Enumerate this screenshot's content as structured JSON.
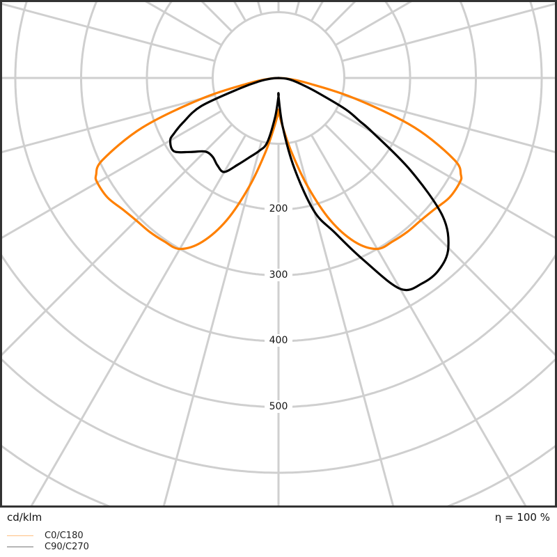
{
  "chart_data": {
    "type": "polar-line",
    "unit_label": "cd/klm",
    "efficiency_label": "η = 100 %",
    "radial_ticks": [
      200,
      300,
      400,
      500
    ],
    "angle_grid_step_deg": 15,
    "grid": true,
    "legend_position": "bottom-left",
    "series": [
      {
        "name": "C0/C180",
        "color": "#ff8000",
        "legend_color": "#ffbf80",
        "angles_deg": [
          0,
          5,
          10,
          15,
          20,
          25,
          30,
          35,
          40,
          45,
          50,
          55,
          60,
          62,
          65,
          70,
          75,
          80,
          85,
          90
        ],
        "right_values": [
          51,
          75,
          115,
          170,
          230,
          275,
          300,
          303,
          305,
          306,
          310,
          317,
          318,
          314,
          295,
          220,
          120,
          45,
          15,
          0
        ],
        "left_values": [
          51,
          75,
          115,
          170,
          230,
          275,
          300,
          303,
          305,
          306,
          310,
          317,
          318,
          314,
          295,
          220,
          120,
          45,
          15,
          0
        ]
      },
      {
        "name": "C90/C270",
        "color": "#000000",
        "legend_color": "#777777",
        "angles_deg": [
          0,
          5,
          10,
          15,
          20,
          25,
          30,
          35,
          40,
          45,
          50,
          55,
          60,
          62,
          65,
          70,
          75,
          80,
          85,
          90
        ],
        "right_values": [
          28,
          75,
          140,
          210,
          250,
          305,
          370,
          381,
          380,
          365,
          325,
          245,
          165,
          140,
          112,
          60,
          35,
          22,
          12,
          0
        ],
        "left_values": [
          28,
          60,
          100,
          115,
          128,
          145,
          165,
          162,
          156,
          158,
          175,
          194,
          190,
          180,
          160,
          125,
          60,
          30,
          12,
          0
        ]
      }
    ]
  }
}
